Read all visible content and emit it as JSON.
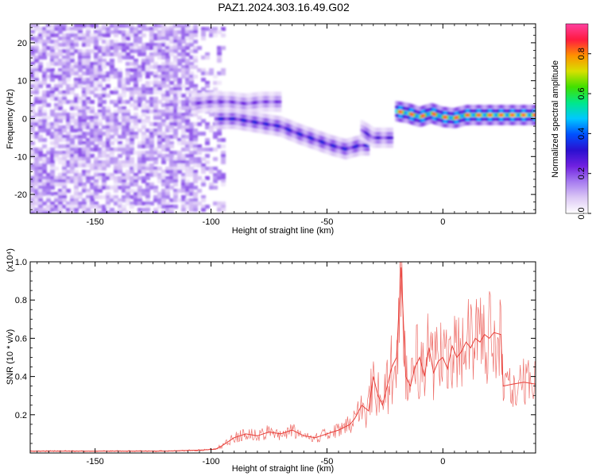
{
  "figure": {
    "title": "PAZ1.2024.303.16.49.G02"
  },
  "colors": {
    "snr_line": "#e8403a",
    "axis": "#000000",
    "colormap": [
      "#ffffff",
      "#dcc8f5",
      "#a67cf0",
      "#7020e0",
      "#2a10d0",
      "#0050ff",
      "#00c8ff",
      "#00e88a",
      "#40e000",
      "#d8e000",
      "#ff9000",
      "#ff1a40",
      "#ff40a0"
    ]
  },
  "chart_data": [
    {
      "type": "heatmap",
      "title": "PAZ1.2024.303.16.49.G02",
      "xlabel": "Height of straight line (km)",
      "ylabel": "Frequency (Hz)",
      "xlim": [
        -178,
        40
      ],
      "ylim": [
        -25,
        25
      ],
      "x_ticks": [
        -150,
        -100,
        -50,
        0
      ],
      "y_ticks": [
        -20,
        -10,
        0,
        10,
        20
      ],
      "x_tick_labels": [
        "-150",
        "-100",
        "-50",
        "0"
      ],
      "y_tick_labels": [
        "-20",
        "-10",
        "0",
        "10",
        "20"
      ],
      "colorbar": {
        "label": "Normalized spectral amplitude",
        "range": [
          0,
          0.95
        ],
        "ticks": [
          0.0,
          0.2,
          0.4,
          0.6,
          0.8
        ],
        "tick_labels": [
          "0.0",
          "0.2",
          "0.4",
          "0.6",
          "0.8"
        ]
      },
      "noise_region": {
        "x": [
          -178,
          -95
        ],
        "y": [
          -25,
          25
        ],
        "amplitude": [
          0.03,
          0.2
        ]
      },
      "features": [
        {
          "name": "upper branch",
          "x": [
            -108,
            -100,
            -92,
            -85,
            -78,
            -70
          ],
          "y": [
            4,
            4.5,
            4.5,
            4,
            4.5,
            4.5
          ],
          "amplitude": 0.25
        },
        {
          "name": "lower branch",
          "x": [
            -98,
            -90,
            -80,
            -70,
            -62,
            -55,
            -48,
            -42,
            -36,
            -32
          ],
          "y": [
            0,
            0,
            -1,
            -2,
            -4,
            -5.5,
            -7,
            -8,
            -7,
            -7
          ],
          "amplitude": 0.35
        },
        {
          "name": "descent",
          "x": [
            -35,
            -30,
            -26,
            -22
          ],
          "y": [
            -3,
            -5,
            -5,
            -5
          ],
          "amplitude": 0.3
        },
        {
          "name": "near-zero line",
          "x": [
            -20,
            -15,
            -10,
            -5,
            0,
            5,
            10,
            15,
            20,
            25,
            30,
            35,
            40
          ],
          "y": [
            2,
            1.5,
            0.5,
            1.5,
            0.5,
            0.2,
            1,
            1,
            1,
            1,
            1,
            1,
            1
          ],
          "amplitude": 0.85
        }
      ]
    },
    {
      "type": "line",
      "xlabel": "Height of straight line (km)",
      "ylabel": "SNR (10 * v/v)",
      "y_multiplier": "(x10⁴)",
      "xlim": [
        -178,
        40
      ],
      "ylim": [
        0,
        1.0
      ],
      "x_ticks": [
        -150,
        -100,
        -50,
        0
      ],
      "y_ticks": [
        0.2,
        0.4,
        0.6,
        0.8,
        1.0
      ],
      "x_tick_labels": [
        "-150",
        "-100",
        "-50",
        "0"
      ],
      "y_tick_labels": [
        "0.2",
        "0.4",
        "0.6",
        "0.8",
        "1.0"
      ],
      "series": [
        {
          "x": [
            -178,
            -160,
            -140,
            -120,
            -105,
            -98,
            -95,
            -90,
            -85,
            -80,
            -75,
            -70,
            -65,
            -60,
            -55,
            -50,
            -45,
            -40,
            -38,
            -35,
            -32,
            -30,
            -28,
            -26,
            -24,
            -22,
            -20,
            -18,
            -16,
            -14,
            -12,
            -10,
            -8,
            -6,
            -4,
            -2,
            0,
            2,
            4,
            6,
            8,
            10,
            12,
            14,
            16,
            18,
            20,
            22,
            25,
            26,
            30,
            35,
            40
          ],
          "y": [
            0.01,
            0.01,
            0.01,
            0.01,
            0.015,
            0.02,
            0.04,
            0.08,
            0.1,
            0.09,
            0.11,
            0.1,
            0.12,
            0.09,
            0.08,
            0.1,
            0.12,
            0.15,
            0.18,
            0.25,
            0.22,
            0.4,
            0.3,
            0.25,
            0.35,
            0.45,
            0.5,
            0.97,
            0.4,
            0.35,
            0.45,
            0.5,
            0.4,
            0.55,
            0.42,
            0.48,
            0.5,
            0.44,
            0.56,
            0.5,
            0.53,
            0.58,
            0.55,
            0.6,
            0.58,
            0.62,
            0.6,
            0.63,
            0.62,
            0.35,
            0.36,
            0.37,
            0.36
          ]
        }
      ]
    }
  ]
}
